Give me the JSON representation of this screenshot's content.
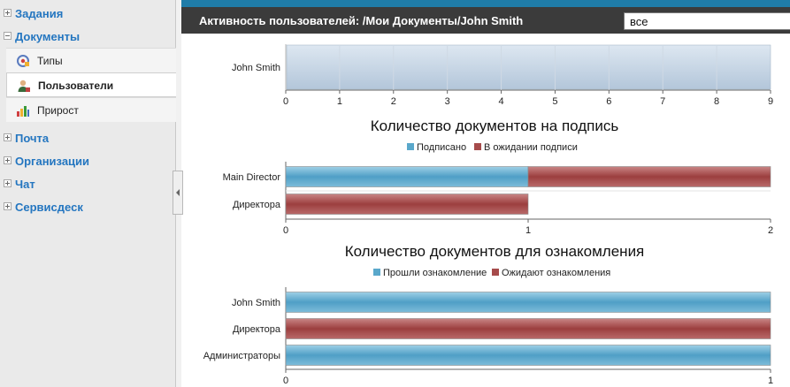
{
  "sidebar": {
    "sections": [
      {
        "label": "Задания",
        "expanded": false
      },
      {
        "label": "Документы",
        "expanded": true,
        "items": [
          {
            "label": "Типы",
            "icon": "types-icon",
            "active": false
          },
          {
            "label": "Пользователи",
            "icon": "users-icon",
            "active": true
          },
          {
            "label": "Прирост",
            "icon": "growth-chart-icon",
            "active": false
          }
        ]
      },
      {
        "label": "Почта",
        "expanded": false
      },
      {
        "label": "Организации",
        "expanded": false
      },
      {
        "label": "Чат",
        "expanded": false
      },
      {
        "label": "Сервисдеск",
        "expanded": false
      }
    ]
  },
  "header": {
    "title": "Активность пользователей: /Мои Документы/John Smith",
    "filter_value": "все"
  },
  "colors": {
    "accent": "#1f7ca8",
    "blue_series": "#5aa8cb",
    "red_series": "#a64b4b",
    "activity_bar": "#c3d3e3",
    "link": "#2476c0"
  },
  "chart_data": [
    {
      "type": "bar",
      "orientation": "horizontal",
      "title": "",
      "categories": [
        "John Smith"
      ],
      "series": [
        {
          "values": [
            9
          ]
        }
      ],
      "xlim": [
        0,
        9
      ],
      "xticks": [
        "0",
        "1",
        "2",
        "3",
        "4",
        "5",
        "6",
        "7",
        "8",
        "9"
      ],
      "grid": true
    },
    {
      "type": "bar",
      "orientation": "horizontal",
      "stacked": true,
      "title": "Количество документов на подпись",
      "categories": [
        "Main Director",
        "Директора"
      ],
      "series": [
        {
          "name": "Подписано",
          "values": [
            1,
            0
          ]
        },
        {
          "name": "В ожидании подписи",
          "values": [
            1,
            1
          ]
        }
      ],
      "xlim": [
        0,
        2
      ],
      "xticks": [
        "0",
        "1",
        "2"
      ],
      "legend": "top-center"
    },
    {
      "type": "bar",
      "orientation": "horizontal",
      "stacked": true,
      "title": "Количество документов для ознакомления",
      "categories": [
        "John Smith",
        "Директора",
        "Администраторы"
      ],
      "series": [
        {
          "name": "Прошли ознакомление",
          "values": [
            1,
            0,
            1
          ]
        },
        {
          "name": "Ожидают ознакомления",
          "values": [
            0,
            1,
            0
          ]
        }
      ],
      "xlim": [
        0,
        1
      ],
      "xticks": [
        "0",
        "1"
      ],
      "legend": "top-center"
    }
  ]
}
